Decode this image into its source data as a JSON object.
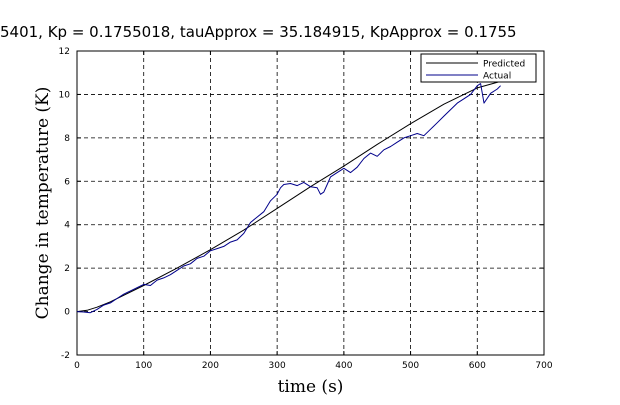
{
  "chart_data": {
    "type": "line",
    "title": "5401, Kp = 0.1755018, tauApprox = 35.184915, KpApprox = 0.1755",
    "xlabel": "time (s)",
    "ylabel": "Change in temperature (K)",
    "xlim": [
      0,
      700
    ],
    "ylim": [
      -2,
      12
    ],
    "x_ticks": [
      0,
      100,
      200,
      300,
      400,
      500,
      600,
      700
    ],
    "y_ticks": [
      -2,
      0,
      2,
      4,
      6,
      8,
      10,
      12
    ],
    "grid": true,
    "grid_style": "dashed",
    "legend_position": "top-right",
    "series": [
      {
        "name": "Predicted",
        "color": "#000000",
        "x": [
          0,
          15,
          30,
          50,
          100,
          150,
          200,
          250,
          300,
          350,
          400,
          450,
          500,
          550,
          600,
          635
        ],
        "y": [
          0,
          0.06,
          0.2,
          0.45,
          1.2,
          2.0,
          2.85,
          3.75,
          4.75,
          5.75,
          6.7,
          7.7,
          8.65,
          9.55,
          10.3,
          10.6
        ]
      },
      {
        "name": "Actual",
        "color": "#00008b",
        "x": [
          0,
          10,
          20,
          30,
          40,
          50,
          60,
          70,
          80,
          90,
          100,
          110,
          120,
          130,
          140,
          150,
          160,
          170,
          180,
          190,
          200,
          210,
          220,
          230,
          240,
          250,
          260,
          270,
          280,
          290,
          300,
          305,
          310,
          320,
          330,
          340,
          350,
          360,
          365,
          370,
          375,
          380,
          390,
          400,
          410,
          420,
          430,
          440,
          450,
          460,
          470,
          480,
          490,
          500,
          510,
          520,
          530,
          540,
          550,
          560,
          570,
          580,
          590,
          600,
          605,
          610,
          620,
          630,
          635
        ],
        "y": [
          0,
          -0.02,
          -0.05,
          0.1,
          0.3,
          0.4,
          0.6,
          0.8,
          0.95,
          1.1,
          1.25,
          1.2,
          1.45,
          1.55,
          1.7,
          1.9,
          2.1,
          2.2,
          2.45,
          2.55,
          2.8,
          2.9,
          3.0,
          3.2,
          3.3,
          3.6,
          4.1,
          4.35,
          4.6,
          5.1,
          5.4,
          5.7,
          5.85,
          5.9,
          5.8,
          5.95,
          5.75,
          5.7,
          5.4,
          5.5,
          5.85,
          6.2,
          6.4,
          6.6,
          6.4,
          6.65,
          7.05,
          7.3,
          7.15,
          7.45,
          7.6,
          7.8,
          8.0,
          8.1,
          8.2,
          8.1,
          8.4,
          8.7,
          9.0,
          9.3,
          9.6,
          9.8,
          10.0,
          10.4,
          10.5,
          9.6,
          10.05,
          10.25,
          10.4
        ]
      }
    ]
  }
}
